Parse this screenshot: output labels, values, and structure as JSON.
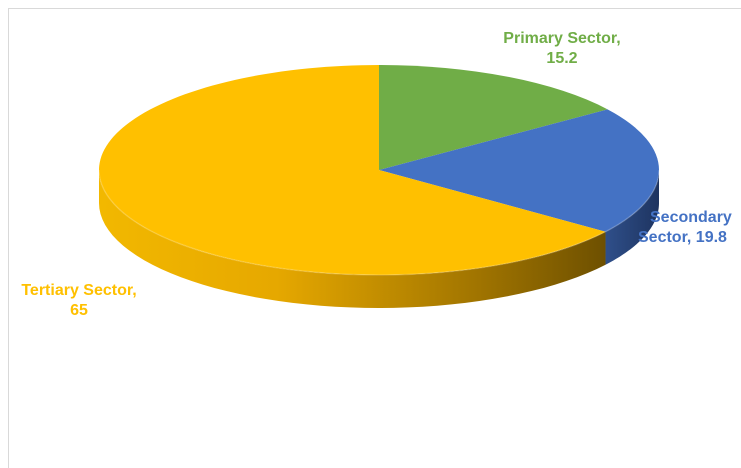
{
  "chart_data": {
    "type": "pie",
    "style": "3d",
    "title": "",
    "legend": "none",
    "slices": [
      {
        "label": "Primary Sector",
        "value": 15.2,
        "color": "#70AD47",
        "label_line1": "Primary Sector,",
        "label_line2": "15.2"
      },
      {
        "label": "Secondary Sector",
        "value": 19.8,
        "color": "#4472C4",
        "label_line1": "Secondary",
        "label_line2": "Sector, 19.8"
      },
      {
        "label": "Tertiary Sector",
        "value": 65,
        "color": "#FFC000",
        "label_line1": "Tertiary Sector,",
        "label_line2": "65"
      }
    ]
  }
}
